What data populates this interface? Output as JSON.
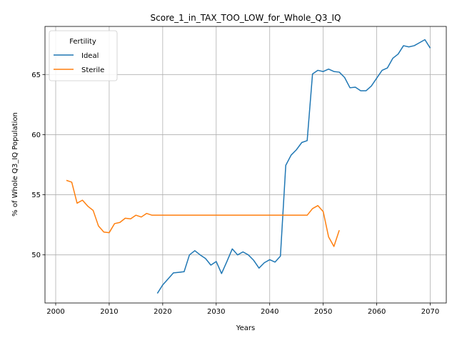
{
  "chart_data": {
    "type": "line",
    "title": "Score_1_in_TAX_TOO_LOW_for_Whole_Q3_IQ",
    "xlabel": "Years",
    "ylabel": "% of Whole Q3_IQ Population",
    "xlim": [
      1998,
      2073
    ],
    "ylim": [
      46.0,
      69.0
    ],
    "xticks": [
      2000,
      2010,
      2020,
      2030,
      2040,
      2050,
      2060,
      2070
    ],
    "yticks": [
      50,
      55,
      60,
      65
    ],
    "grid": true,
    "legend": {
      "title": "Fertility",
      "placement": "top-left"
    },
    "series": [
      {
        "name": "Ideal",
        "color": "#1f77b4",
        "x": [
          2019,
          2020,
          2021,
          2022,
          2023,
          2024,
          2025,
          2026,
          2027,
          2028,
          2029,
          2030,
          2031,
          2032,
          2033,
          2034,
          2035,
          2036,
          2037,
          2038,
          2039,
          2040,
          2041,
          2042,
          2043,
          2044,
          2045,
          2046,
          2047,
          2048,
          2049,
          2050,
          2051,
          2052,
          2053,
          2054,
          2055,
          2056,
          2057,
          2058,
          2059,
          2060,
          2061,
          2062,
          2063,
          2064,
          2065,
          2066,
          2067,
          2068,
          2069,
          2070
        ],
        "y": [
          46.8,
          47.5,
          48.0,
          48.5,
          48.55,
          48.6,
          50.0,
          50.35,
          50.0,
          49.7,
          49.15,
          49.45,
          48.45,
          49.45,
          50.5,
          50.0,
          50.25,
          50.0,
          49.55,
          48.9,
          49.35,
          49.6,
          49.4,
          49.9,
          57.45,
          58.3,
          58.75,
          59.35,
          59.5,
          65.05,
          65.35,
          65.25,
          65.45,
          65.25,
          65.2,
          64.75,
          63.9,
          63.95,
          63.65,
          63.65,
          64.05,
          64.7,
          65.35,
          65.55,
          66.35,
          66.7,
          67.4,
          67.3,
          67.4,
          67.65,
          67.9,
          67.2
        ]
      },
      {
        "name": "Sterile",
        "color": "#ff7f0e",
        "x": [
          2002,
          2003,
          2004,
          2005,
          2006,
          2007,
          2008,
          2009,
          2010,
          2011,
          2012,
          2013,
          2014,
          2015,
          2016,
          2017,
          2018,
          2019,
          2020,
          2021,
          2022,
          2023,
          2024,
          2025,
          2026,
          2027,
          2028,
          2029,
          2030,
          2031,
          2032,
          2033,
          2034,
          2035,
          2036,
          2037,
          2038,
          2039,
          2040,
          2041,
          2042,
          2043,
          2044,
          2045,
          2046,
          2047,
          2048,
          2049,
          2050,
          2051,
          2052,
          2053
        ],
        "y": [
          56.2,
          56.05,
          54.3,
          54.55,
          54.05,
          53.7,
          52.4,
          51.9,
          51.85,
          52.6,
          52.7,
          53.05,
          53.0,
          53.3,
          53.15,
          53.45,
          53.3,
          53.3,
          53.3,
          53.3,
          53.3,
          53.3,
          53.3,
          53.3,
          53.3,
          53.3,
          53.3,
          53.3,
          53.3,
          53.3,
          53.3,
          53.3,
          53.3,
          53.3,
          53.3,
          53.3,
          53.3,
          53.3,
          53.3,
          53.3,
          53.3,
          53.3,
          53.3,
          53.3,
          53.3,
          53.3,
          53.85,
          54.1,
          53.6,
          51.5,
          50.7,
          52.05
        ]
      }
    ]
  }
}
